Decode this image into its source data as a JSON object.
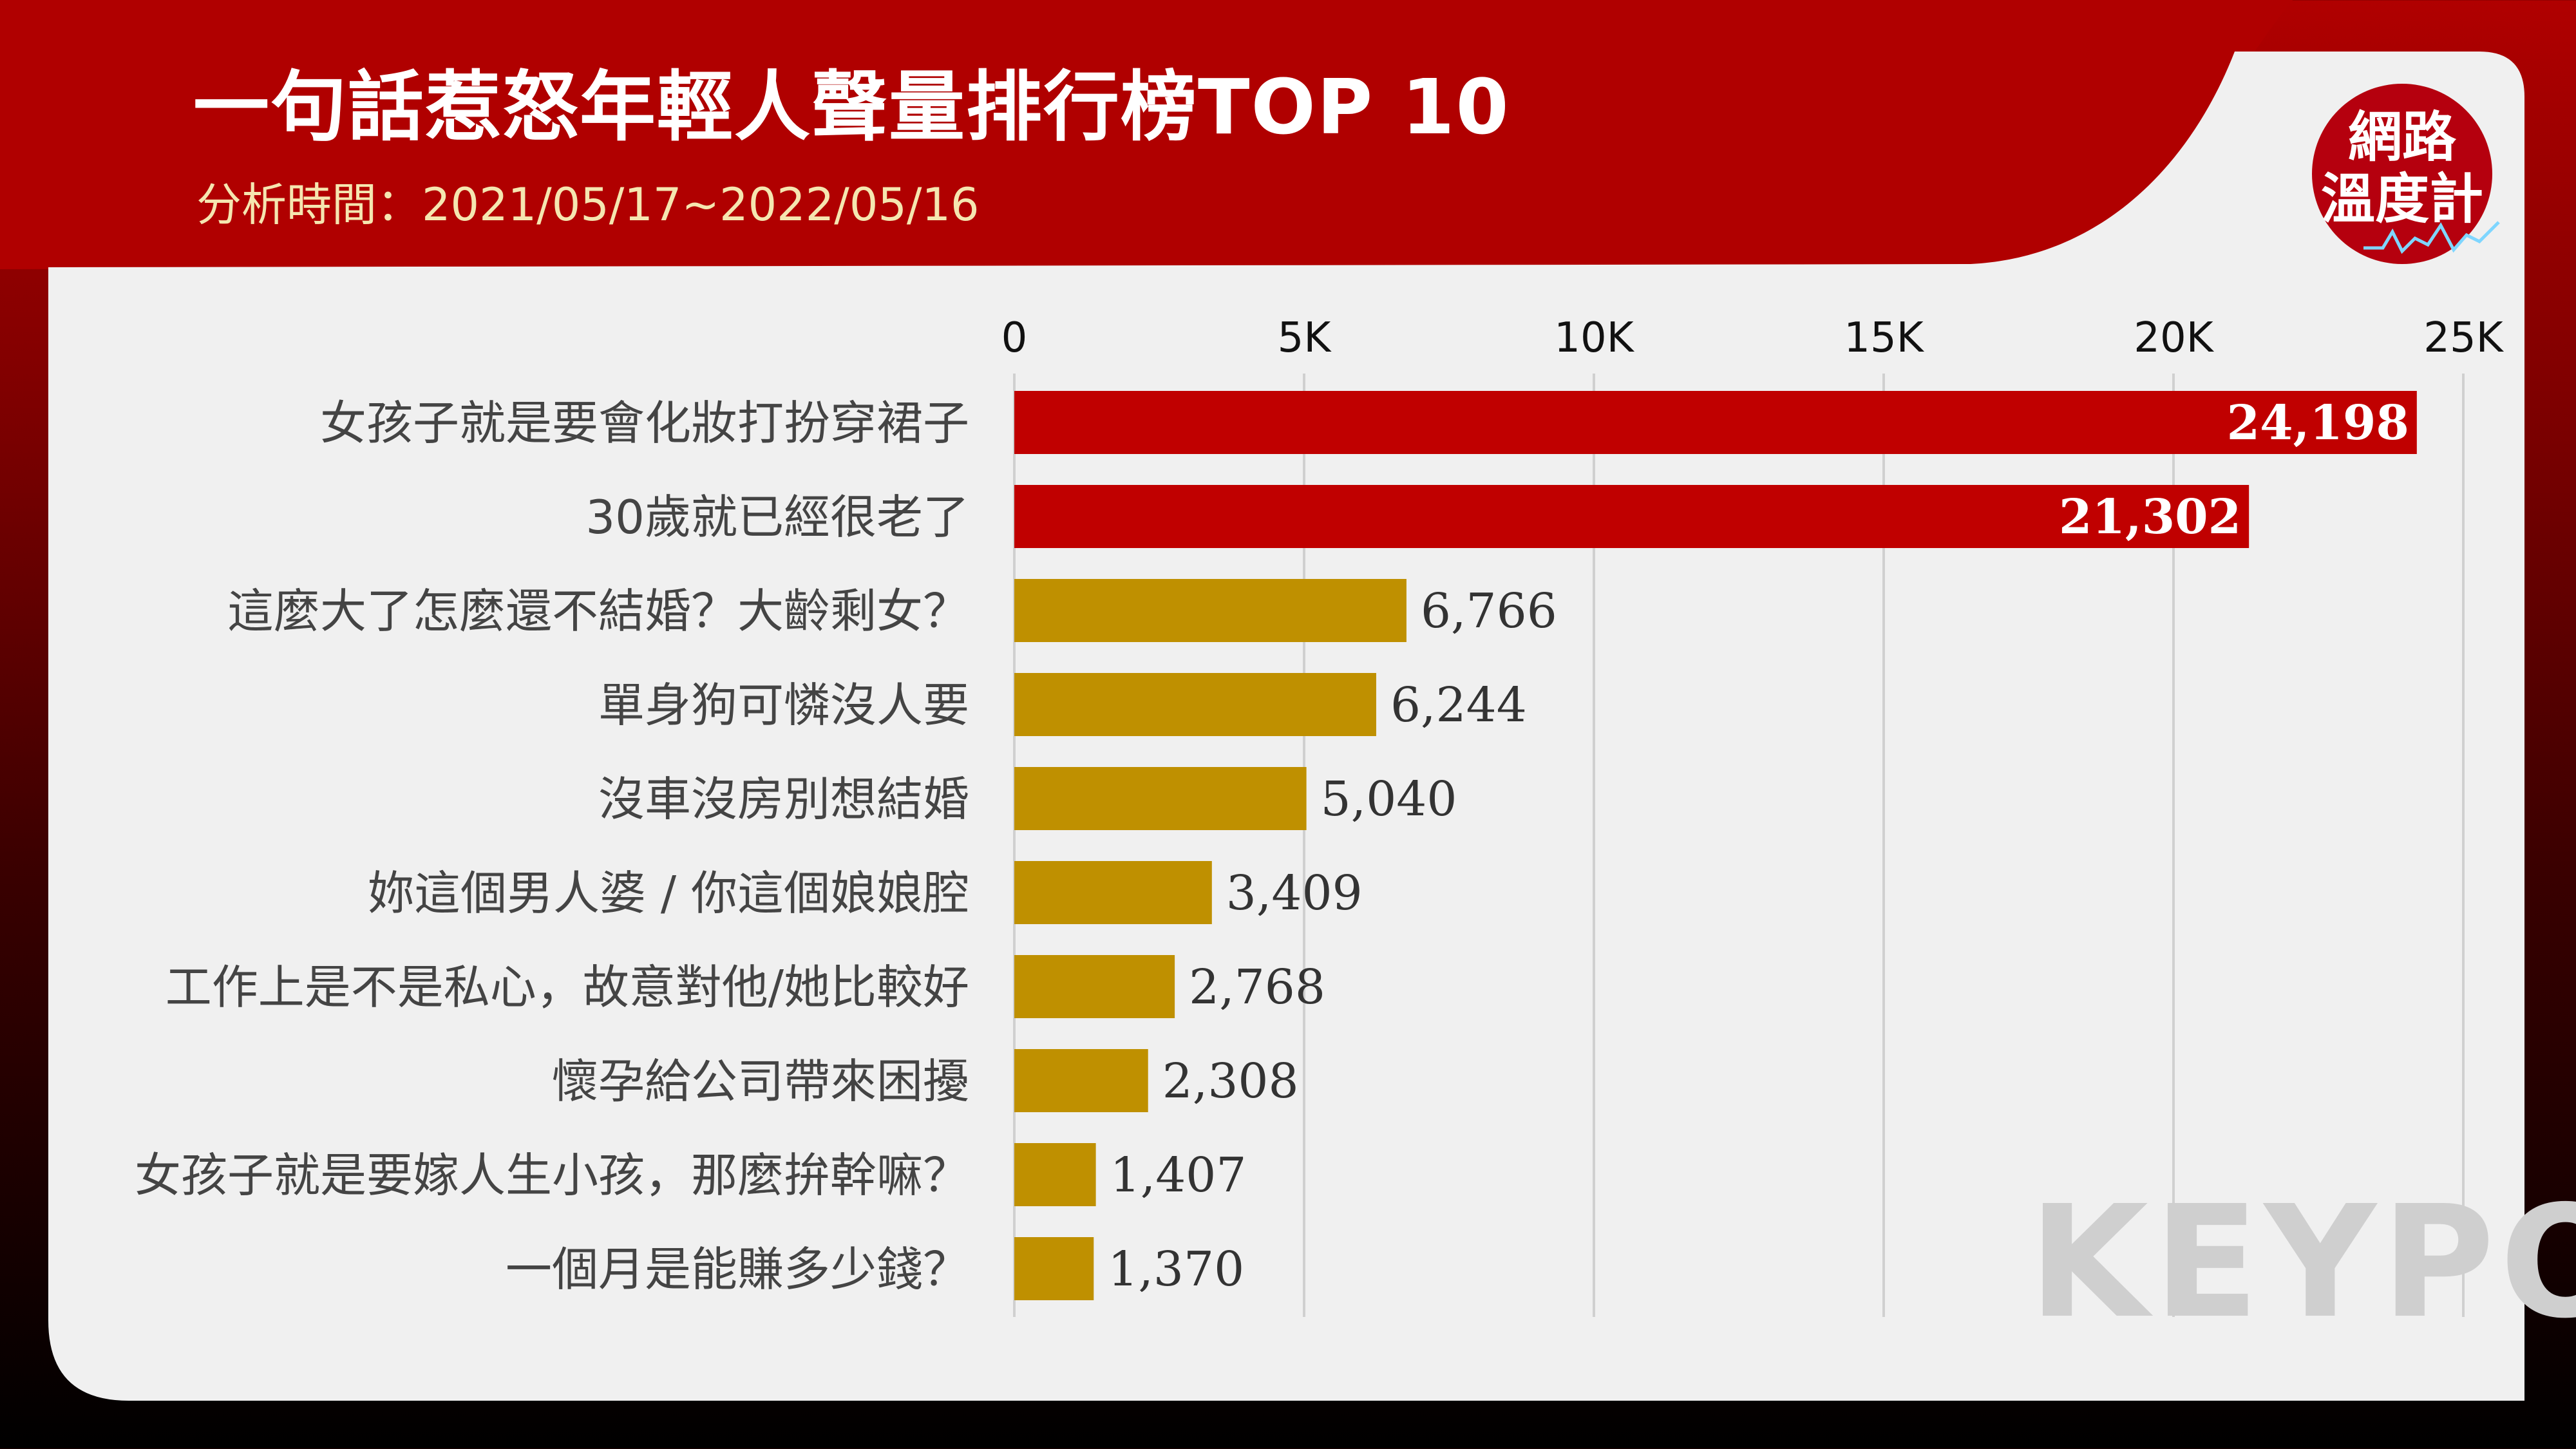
{
  "header": {
    "title": "一句話惹怒年輕人聲量排行榜TOP 10",
    "period": "分析時間：2021/05/17~2022/05/16"
  },
  "badge": {
    "line1": "網路",
    "line2": "溫度計"
  },
  "watermark": "KEYPO",
  "colors": {
    "top_bar": "#c00000",
    "other_bar": "#bf9000",
    "header": "#b00000",
    "panel": "#f0f0f0"
  },
  "chart_data": {
    "type": "bar",
    "orientation": "horizontal",
    "categories": [
      "女孩子就是要會化妝打扮穿裙子",
      "30歲就已經很老了",
      "這麼大了怎麼還不結婚？大齡剩女？",
      "單身狗可憐沒人要",
      "沒車沒房別想結婚",
      "妳這個男人婆 / 你這個娘娘腔",
      "工作上是不是私心，故意對他/她比較好",
      "懷孕給公司帶來困擾",
      "女孩子就是要嫁人生小孩，那麼拚幹嘛？",
      "一個月是能賺多少錢？"
    ],
    "values": [
      24198,
      21302,
      6766,
      6244,
      5040,
      3409,
      2768,
      2308,
      1407,
      1370
    ],
    "value_labels": [
      "24,198",
      "21,302",
      "6,766",
      "6,244",
      "5,040",
      "3,409",
      "2,768",
      "2,308",
      "1,407",
      "1,370"
    ],
    "xlim": [
      0,
      25000
    ],
    "ticks": [
      0,
      5000,
      10000,
      15000,
      20000,
      25000
    ],
    "tick_labels": [
      "0",
      "5K",
      "10K",
      "15K",
      "20K",
      "25K"
    ],
    "xaxis_position": "top",
    "grid": true
  }
}
